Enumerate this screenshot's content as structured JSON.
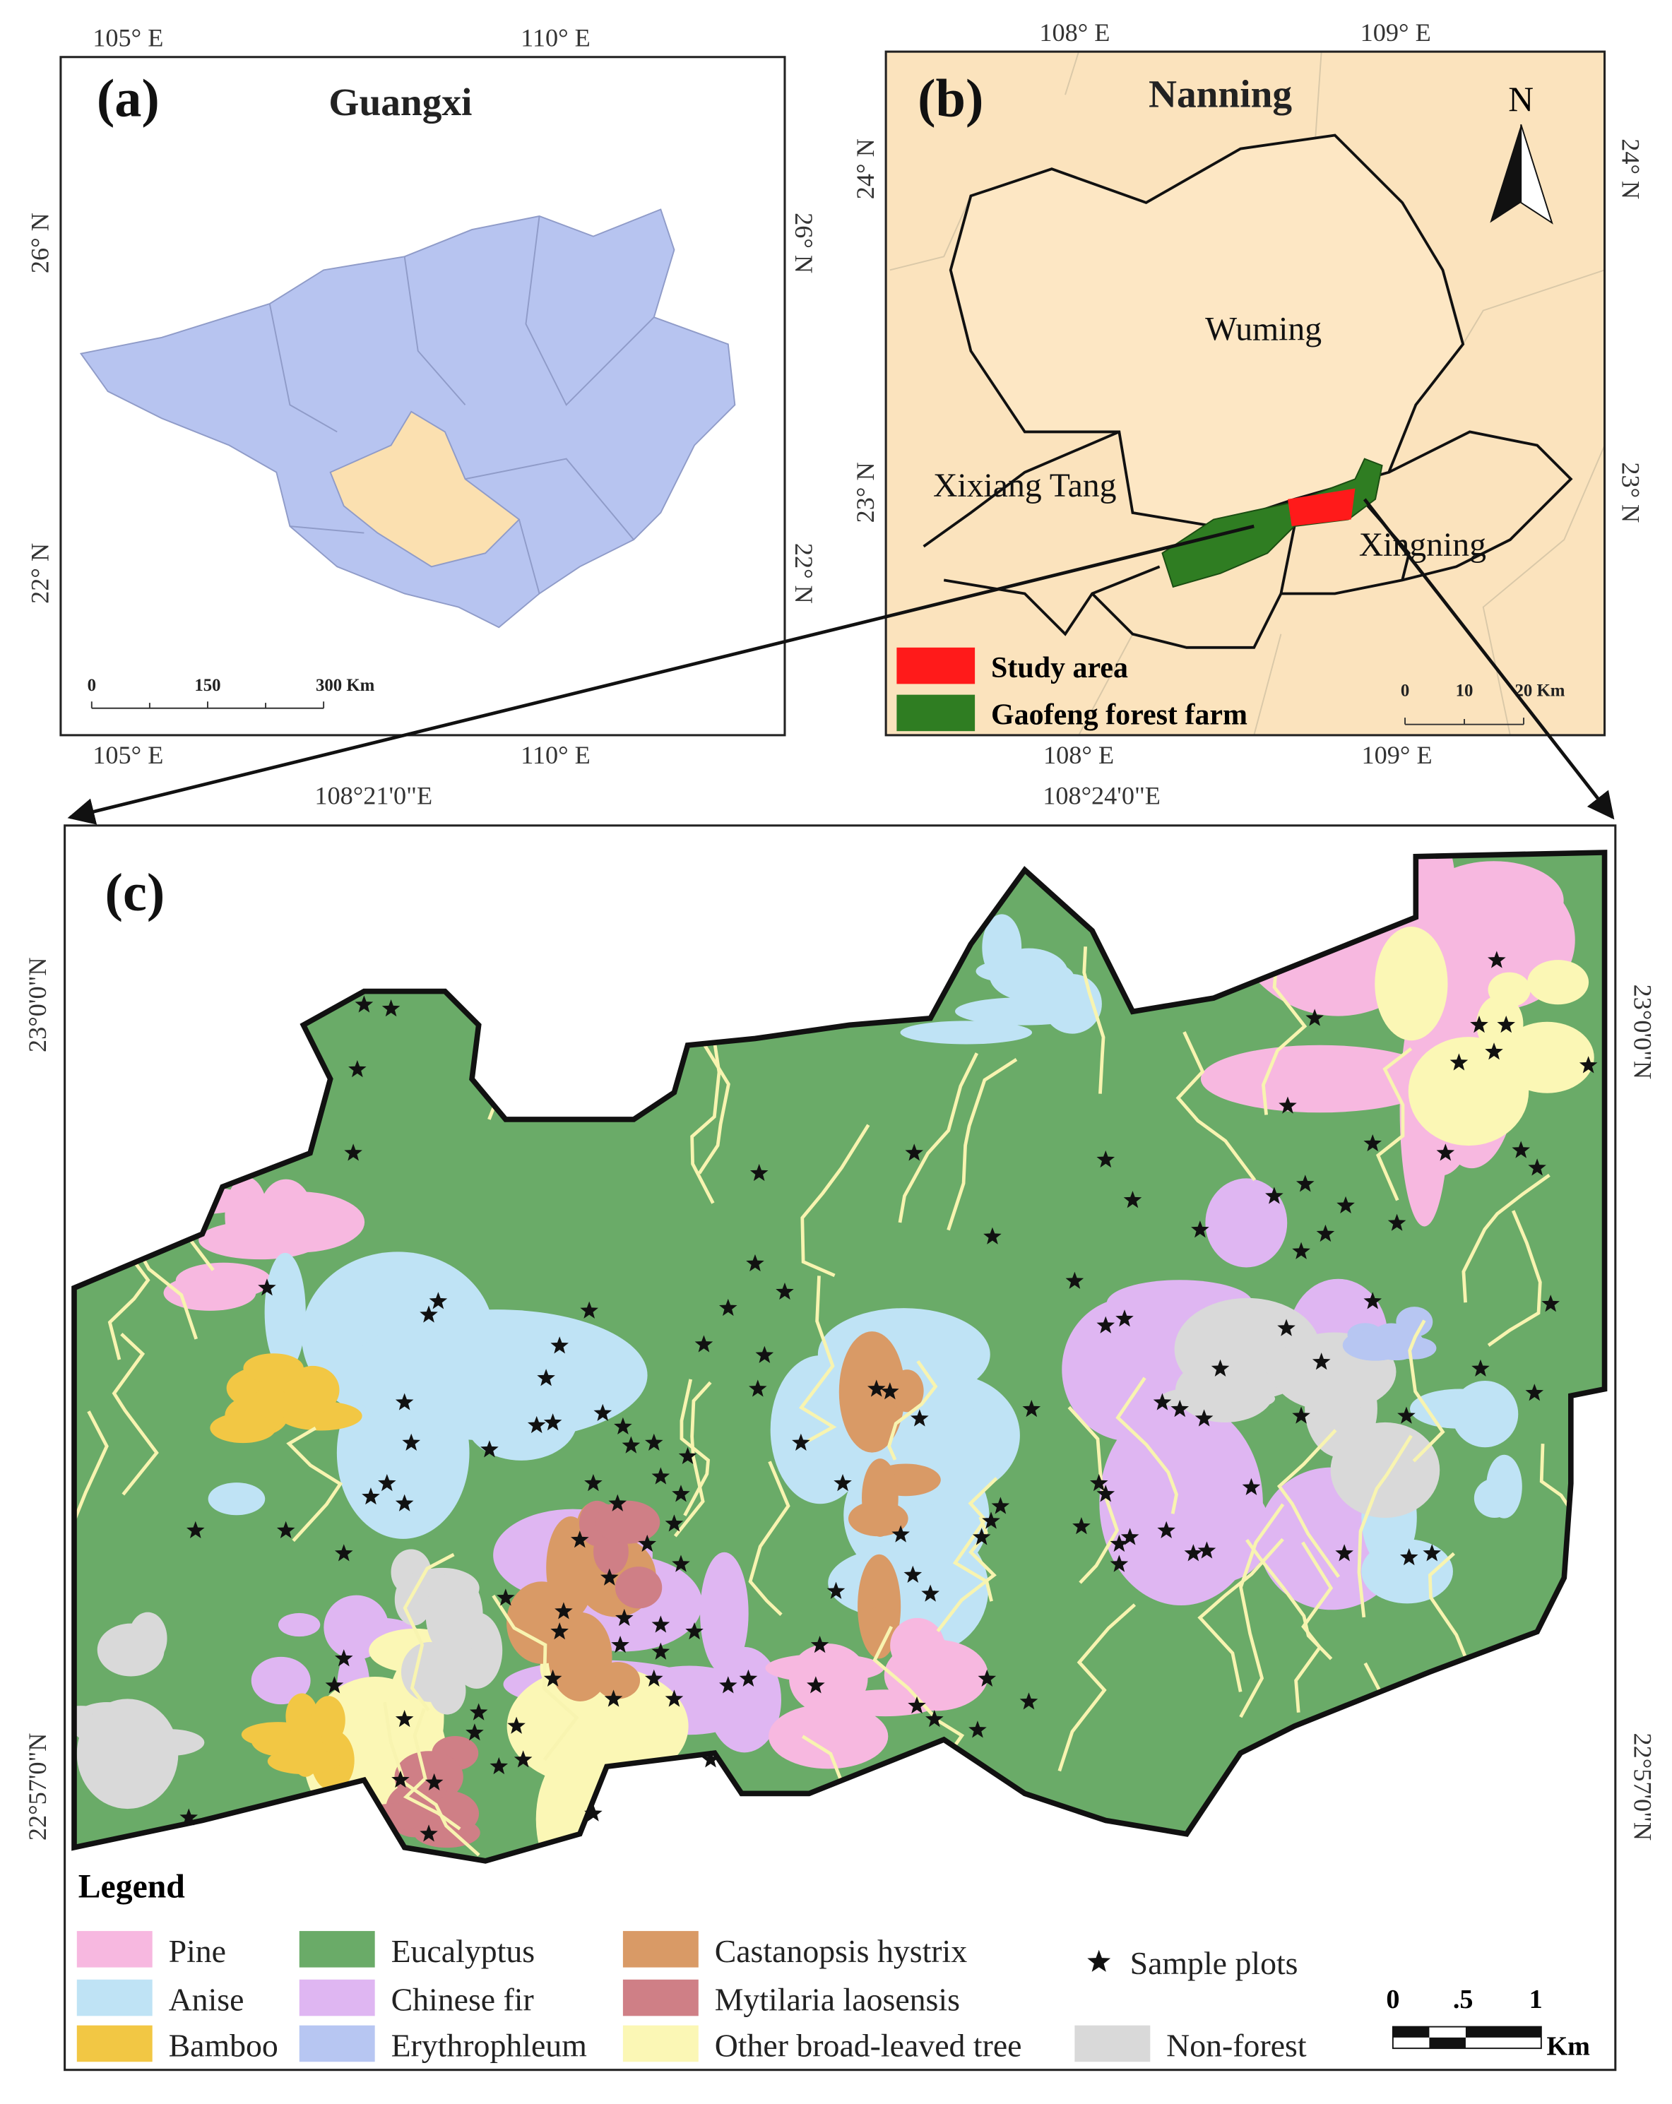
{
  "panel_a": {
    "label": "(a)",
    "title": "Guangxi",
    "lon_top": [
      "105° E",
      "110° E"
    ],
    "lon_bottom": [
      "105° E",
      "110° E"
    ],
    "lat_left": [
      "26° N",
      "22° N"
    ],
    "lat_right": [
      "26° N",
      "22° N"
    ],
    "scale": [
      "0",
      "150",
      "300 Km"
    ]
  },
  "panel_b": {
    "label": "(b)",
    "title": "Nanning",
    "north": "N",
    "lon_top": [
      "108° E",
      "109° E"
    ],
    "lon_bottom": [
      "108° E",
      "109° E"
    ],
    "lat_left": [
      "24° N",
      "23° N"
    ],
    "lat_right": [
      "24° N",
      "23° N"
    ],
    "places": [
      "Wuming",
      "Xixiang Tang",
      "Xingning"
    ],
    "legend": [
      {
        "label": "Study area",
        "color": "#ff1a1a"
      },
      {
        "label": "Gaofeng forest farm",
        "color": "#2f7d22"
      }
    ],
    "scale": [
      "0",
      "10",
      "20 Km"
    ]
  },
  "panel_c": {
    "label": "(c)",
    "lon_top": [
      "108°21'0\"E",
      "108°24'0\"E"
    ],
    "lat_left": [
      "23°0'0\"N",
      "22°57'0\"N"
    ],
    "lat_right": [
      "23°0'0\"N",
      "22°57'0\"N"
    ],
    "legend_title": "Legend",
    "legend": [
      {
        "label": "Pine",
        "color": "#f7b8e0"
      },
      {
        "label": "Anise",
        "color": "#bfe3f5"
      },
      {
        "label": "Bamboo",
        "color": "#f2c744"
      },
      {
        "label": "Eucalyptus",
        "color": "#6aab68"
      },
      {
        "label": "Chinese fir",
        "color": "#dfb6f2"
      },
      {
        "label": "Erythrophleum",
        "color": "#b7c6f2"
      },
      {
        "label": "Castanopsis hystrix",
        "color": "#d99a66"
      },
      {
        "label": "Mytilaria laosensis",
        "color": "#cf7f86"
      },
      {
        "label": "Other broad-leaved tree",
        "color": "#fbf7b5"
      },
      {
        "label": "Non-forest",
        "color": "#d9d9d9"
      }
    ],
    "sample_plots": "Sample plots",
    "scale": [
      "0",
      ".5",
      "1",
      "Km"
    ]
  }
}
